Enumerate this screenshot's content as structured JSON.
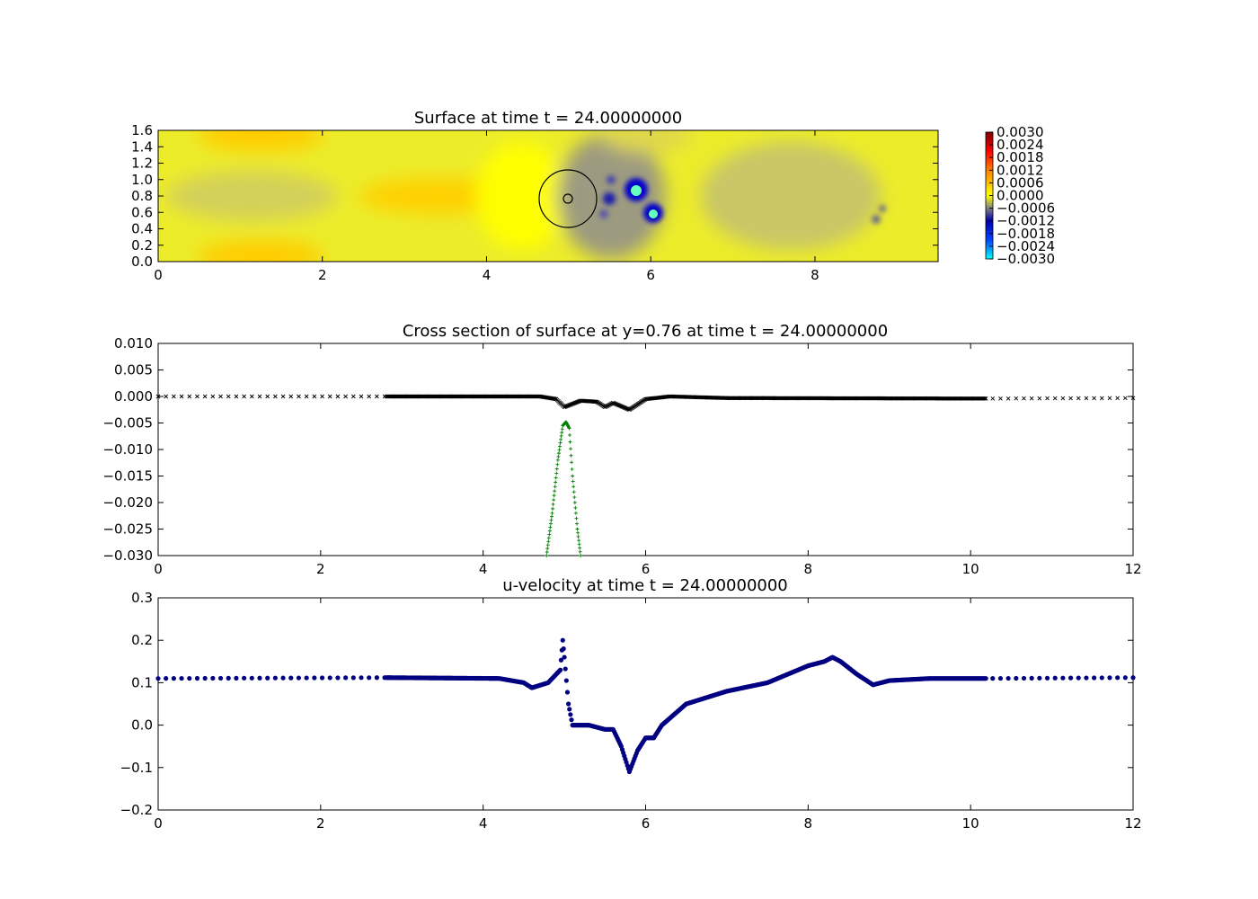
{
  "chart_data": [
    {
      "type": "heatmap",
      "title": "Surface at time t =    24.00000000",
      "xlim": [
        0,
        9.5
      ],
      "ylim": [
        0,
        1.6
      ],
      "x_ticks": [
        "0",
        "2",
        "4",
        "6",
        "8"
      ],
      "y_ticks": [
        "0.0",
        "0.2",
        "0.4",
        "0.6",
        "0.8",
        "1.0",
        "1.2",
        "1.4",
        "1.6"
      ],
      "colorbar": {
        "ticks": [
          "0.0030",
          "0.0024",
          "0.0018",
          "0.0012",
          "0.0006",
          "0.0000",
          "−0.0006",
          "−0.0012",
          "−0.0018",
          "−0.0024",
          "−0.0030"
        ],
        "range": [
          -0.003,
          0.003
        ]
      },
      "features": [
        {
          "label": "high",
          "x": 1.3,
          "y": 1.45,
          "value": 0.0005
        },
        {
          "label": "high",
          "x": 1.3,
          "y": 0.1,
          "value": 0.0005
        },
        {
          "label": "high",
          "x": 3.5,
          "y": 0.8,
          "value": 0.0006
        },
        {
          "label": "low",
          "x": 5.85,
          "y": 0.85,
          "value": -0.003
        },
        {
          "label": "low",
          "x": 6.05,
          "y": 0.58,
          "value": -0.003
        },
        {
          "label": "low",
          "x": 5.55,
          "y": 0.78,
          "value": -0.0018
        },
        {
          "label": "low",
          "x": 8.75,
          "y": 0.55,
          "value": -0.0012
        }
      ],
      "circle": {
        "center": [
          5.0,
          0.77
        ],
        "radius": 0.35
      },
      "colors": {
        "low": "#00ffff",
        "mid_low": "#0000cc",
        "grey": "#808080",
        "zero": "#ffff00",
        "high": "#ff0000",
        "max": "#800000"
      }
    },
    {
      "type": "scatter",
      "title": "Cross section of surface at y=0.76 at time t =    24.00000000",
      "xlim": [
        0,
        12
      ],
      "ylim": [
        -0.03,
        0.01
      ],
      "x_ticks": [
        "0",
        "2",
        "4",
        "6",
        "8",
        "10",
        "12"
      ],
      "y_ticks": [
        "0.010",
        "0.005",
        "0.000",
        "−0.005",
        "−0.010",
        "−0.015",
        "−0.020",
        "−0.025",
        "−0.030"
      ],
      "series": [
        {
          "marker": "x",
          "color": "#000000",
          "points": [
            [
              0,
              0
            ],
            [
              2.8,
              0
            ],
            [
              4.7,
              0
            ],
            [
              4.9,
              -0.0005
            ],
            [
              5.0,
              -0.002
            ],
            [
              5.2,
              -0.0008
            ],
            [
              5.4,
              -0.001
            ],
            [
              5.5,
              -0.002
            ],
            [
              5.6,
              -0.0012
            ],
            [
              5.8,
              -0.0025
            ],
            [
              6.0,
              -0.0005
            ],
            [
              6.3,
              0
            ],
            [
              7.0,
              -0.0003
            ],
            [
              10.2,
              -0.0004
            ],
            [
              12,
              -0.0003
            ]
          ]
        },
        {
          "marker": "+",
          "color": "#008000",
          "points": [
            [
              4.78,
              -0.03
            ],
            [
              4.85,
              -0.022
            ],
            [
              4.92,
              -0.012
            ],
            [
              4.98,
              -0.0055
            ],
            [
              5.02,
              -0.0048
            ],
            [
              5.06,
              -0.006
            ],
            [
              5.1,
              -0.015
            ],
            [
              5.16,
              -0.025
            ],
            [
              5.2,
              -0.03
            ]
          ]
        }
      ]
    },
    {
      "type": "scatter",
      "title": "u-velocity at time t =    24.00000000",
      "xlim": [
        0,
        12
      ],
      "ylim": [
        -0.2,
        0.3
      ],
      "x_ticks": [
        "0",
        "2",
        "4",
        "6",
        "8",
        "10",
        "12"
      ],
      "y_ticks": [
        "0.3",
        "0.2",
        "0.1",
        "0.0",
        "−0.1",
        "−0.2"
      ],
      "series": [
        {
          "marker": "o",
          "color": "#000080",
          "points": [
            [
              0,
              0.11
            ],
            [
              2.8,
              0.112
            ],
            [
              4.2,
              0.11
            ],
            [
              4.5,
              0.1
            ],
            [
              4.6,
              0.088
            ],
            [
              4.8,
              0.1
            ],
            [
              4.95,
              0.13
            ],
            [
              4.98,
              0.2
            ],
            [
              5.0,
              0.16
            ],
            [
              5.05,
              0.05
            ],
            [
              5.1,
              0.0
            ],
            [
              5.3,
              0.0
            ],
            [
              5.5,
              -0.01
            ],
            [
              5.6,
              -0.01
            ],
            [
              5.7,
              -0.05
            ],
            [
              5.8,
              -0.11
            ],
            [
              5.9,
              -0.06
            ],
            [
              6.0,
              -0.03
            ],
            [
              6.1,
              -0.03
            ],
            [
              6.2,
              0.0
            ],
            [
              6.5,
              0.05
            ],
            [
              7.0,
              0.08
            ],
            [
              7.5,
              0.1
            ],
            [
              8.0,
              0.14
            ],
            [
              8.2,
              0.15
            ],
            [
              8.3,
              0.16
            ],
            [
              8.4,
              0.15
            ],
            [
              8.6,
              0.12
            ],
            [
              8.8,
              0.095
            ],
            [
              9.0,
              0.105
            ],
            [
              9.5,
              0.11
            ],
            [
              10.2,
              0.11
            ],
            [
              12,
              0.112
            ]
          ]
        }
      ]
    }
  ]
}
